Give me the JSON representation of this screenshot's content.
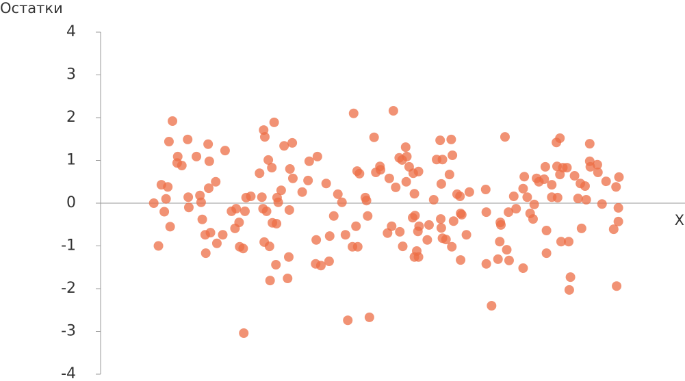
{
  "chart_data": {
    "type": "scatter",
    "y_label": "Остатки",
    "x_label": "X",
    "color": "#ec6d45",
    "xlim": [
      0,
      100
    ],
    "ylim": [
      -4,
      4
    ],
    "yticks": [
      -4,
      -3,
      -2,
      -1,
      0,
      1,
      2,
      3,
      4
    ],
    "x": [
      9.1,
      9.9,
      10.4,
      10.9,
      11.2,
      11.5,
      11.7,
      11.9,
      12.3,
      13.1,
      13.2,
      13.9,
      14.9,
      15.0,
      15.1,
      16.4,
      17.0,
      17.2,
      17.4,
      17.9,
      18.0,
      18.4,
      18.5,
      18.6,
      18.8,
      19.7,
      19.9,
      20.9,
      21.3,
      22.4,
      23.0,
      23.2,
      23.7,
      23.8,
      24.4,
      24.5,
      24.7,
      24.9,
      25.7,
      27.2,
      27.6,
      27.8,
      27.9,
      28.0,
      28.1,
      28.4,
      28.7,
      28.9,
      29.0,
      29.3,
      29.4,
      29.7,
      30.0,
      30.1,
      30.2,
      30.4,
      30.9,
      31.4,
      32.0,
      32.2,
      32.3,
      32.4,
      32.8,
      32.9,
      34.5,
      35.5,
      35.7,
      36.8,
      36.9,
      37.1,
      37.7,
      38.6,
      39.1,
      39.2,
      39.9,
      40.6,
      41.3,
      41.9,
      42.3,
      43.1,
      43.3,
      43.7,
      43.9,
      44.0,
      44.3,
      45.3,
      45.5,
      45.7,
      46.0,
      46.8,
      47.1,
      47.8,
      47.9,
      49.1,
      49.4,
      49.8,
      50.1,
      50.5,
      51.1,
      51.2,
      51.6,
      51.7,
      52.2,
      52.3,
      52.4,
      52.8,
      53.4,
      53.5,
      53.7,
      53.7,
      53.8,
      54.1,
      54.3,
      54.4,
      54.4,
      54.5,
      55.9,
      56.2,
      57.0,
      57.5,
      58.1,
      58.2,
      58.3,
      58.3,
      58.5,
      58.5,
      59.1,
      59.7,
      60.0,
      60.1,
      60.2,
      60.4,
      61.0,
      61.5,
      61.6,
      61.6,
      61.8,
      62.6,
      63.1,
      65.9,
      66.0,
      66.0,
      66.9,
      68.0,
      68.3,
      68.4,
      68.5,
      69.2,
      69.5,
      69.8,
      69.9,
      70.7,
      71.1,
      72.3,
      72.3,
      72.5,
      73.0,
      73.5,
      74.0,
      74.2,
      74.6,
      75.0,
      75.9,
      76.1,
      76.3,
      76.3,
      77.2,
      77.2,
      78.0,
      78.1,
      78.2,
      78.6,
      78.6,
      78.8,
      79.1,
      79.8,
      80.1,
      80.4,
      80.2,
      81.1,
      81.7,
      82.1,
      82.3,
      82.9,
      83.1,
      83.7,
      83.7,
      83.8,
      85.0,
      85.1,
      85.8,
      86.5,
      87.8,
      88.2,
      88.3,
      88.6,
      88.6,
      88.7
    ],
    "values": [
      0,
      -1,
      0.43,
      -0.2,
      0.1,
      0.38,
      1.44,
      -0.55,
      1.92,
      0.94,
      1.09,
      0.88,
      1.49,
      0.14,
      -0.1,
      1.09,
      0.18,
      0.02,
      -0.38,
      -0.74,
      -1.17,
      1.38,
      0.35,
      0.98,
      -0.69,
      0.5,
      -0.94,
      -0.74,
      1.23,
      -0.19,
      -0.59,
      -0.13,
      -0.45,
      -1.02,
      -1.06,
      -3.04,
      -0.19,
      0.13,
      0.16,
      0.7,
      0.14,
      -0.13,
      1.71,
      -0.91,
      1.55,
      -0.19,
      1.01,
      -1.01,
      -1.81,
      0.83,
      -0.46,
      1.89,
      -1.44,
      -0.48,
      0.13,
      0.02,
      0.3,
      1.34,
      -1.76,
      -1.26,
      -0.16,
      0.8,
      1.41,
      0.58,
      0.26,
      0.53,
      0.98,
      -1.42,
      -0.86,
      1.09,
      -1.46,
      0.46,
      -1.36,
      -0.77,
      -0.3,
      0.21,
      0.02,
      -0.74,
      -2.74,
      -1.02,
      2.1,
      -0.54,
      0.75,
      -1.02,
      0.69,
      0.13,
      0.06,
      -0.3,
      -2.67,
      1.54,
      0.72,
      0.86,
      0.78,
      -0.7,
      0.58,
      -0.54,
      2.16,
      0.37,
      1.06,
      -0.67,
      1.01,
      -1.01,
      1.31,
      0.5,
      1.09,
      0.85,
      -0.34,
      0.7,
      -1.26,
      0.22,
      -0.29,
      -1.12,
      -0.66,
      -1.26,
      0.74,
      -0.54,
      -0.86,
      -0.51,
      0.08,
      1.02,
      1.47,
      -0.37,
      0.45,
      -0.58,
      1.02,
      -0.82,
      -0.85,
      0.67,
      1.49,
      -1.02,
      1.12,
      -0.42,
      0.21,
      0.16,
      -0.24,
      -1.33,
      -0.27,
      -0.74,
      0.26,
      0.32,
      -0.21,
      -1.42,
      -2.4,
      -1.31,
      -0.9,
      -0.45,
      -0.51,
      1.55,
      -1.09,
      -0.21,
      -1.34,
      0.16,
      -0.13,
      -1.52,
      0.34,
      0.62,
      0.14,
      -0.24,
      -0.37,
      -0.03,
      0.58,
      0.5,
      0.56,
      0.85,
      -0.64,
      -1.17,
      0.14,
      0.43,
      1.42,
      0.86,
      0.13,
      1.52,
      0.67,
      -0.9,
      0.83,
      0.83,
      -0.9,
      -1.73,
      -2.03,
      0.64,
      0.11,
      0.46,
      -0.59,
      0.4,
      0.08,
      1.39,
      0.98,
      0.85,
      0.9,
      0.72,
      -0.02,
      0.51,
      -0.61,
      0.38,
      -1.94,
      -0.11,
      -0.43,
      0.61
    ]
  }
}
